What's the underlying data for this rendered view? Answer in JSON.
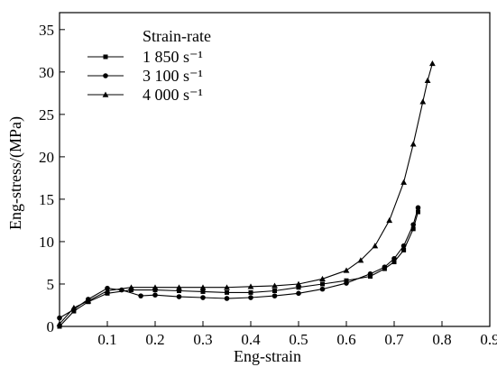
{
  "chart_data": {
    "type": "line",
    "xlabel": "Eng-strain",
    "ylabel": "Eng-stress/(MPa)",
    "xlim": [
      0,
      0.9
    ],
    "ylim": [
      0,
      37
    ],
    "x_ticks": [
      0.1,
      0.2,
      0.3,
      0.4,
      0.5,
      0.6,
      0.7,
      0.8,
      0.9
    ],
    "y_ticks": [
      0,
      5,
      10,
      15,
      20,
      25,
      30,
      35
    ],
    "x_tick_labels": [
      "0.1",
      "0.2",
      "0.3",
      "0.4",
      "0.5",
      "0.6",
      "0.7",
      "0.8",
      "0.9"
    ],
    "y_tick_labels": [
      "0",
      "5",
      "10",
      "15",
      "20",
      "25",
      "30",
      "35"
    ],
    "origin_label": "0",
    "legend": {
      "title": "Strain-rate",
      "placement": "top-left"
    },
    "series": [
      {
        "name": "1 850 s⁻¹",
        "marker": "square",
        "x": [
          0.0,
          0.03,
          0.06,
          0.1,
          0.15,
          0.2,
          0.25,
          0.3,
          0.35,
          0.4,
          0.45,
          0.5,
          0.55,
          0.6,
          0.65,
          0.68,
          0.7,
          0.72,
          0.74,
          0.75
        ],
        "y": [
          0.0,
          1.8,
          2.9,
          3.9,
          4.3,
          4.3,
          4.2,
          4.1,
          4.0,
          4.0,
          4.2,
          4.6,
          5.0,
          5.4,
          5.9,
          6.8,
          7.6,
          9.0,
          11.5,
          13.5
        ]
      },
      {
        "name": "3 100 s⁻¹",
        "marker": "circle",
        "x": [
          0.0,
          0.03,
          0.06,
          0.1,
          0.13,
          0.17,
          0.2,
          0.25,
          0.3,
          0.35,
          0.4,
          0.45,
          0.5,
          0.55,
          0.6,
          0.65,
          0.68,
          0.7,
          0.72,
          0.74,
          0.75
        ],
        "y": [
          1.0,
          2.0,
          3.2,
          4.5,
          4.3,
          3.6,
          3.7,
          3.5,
          3.4,
          3.3,
          3.4,
          3.6,
          3.9,
          4.4,
          5.1,
          6.2,
          7.0,
          8.0,
          9.5,
          12.0,
          14.0
        ]
      },
      {
        "name": "4 000 s⁻¹",
        "marker": "triangle",
        "x": [
          0.0,
          0.03,
          0.06,
          0.1,
          0.15,
          0.2,
          0.25,
          0.3,
          0.35,
          0.4,
          0.45,
          0.5,
          0.55,
          0.6,
          0.63,
          0.66,
          0.69,
          0.72,
          0.74,
          0.76,
          0.77,
          0.78
        ],
        "y": [
          0.3,
          2.2,
          3.0,
          4.2,
          4.6,
          4.6,
          4.6,
          4.6,
          4.6,
          4.7,
          4.8,
          5.0,
          5.6,
          6.6,
          7.8,
          9.5,
          12.5,
          17.0,
          21.5,
          26.5,
          29.0,
          31.0
        ]
      }
    ]
  }
}
